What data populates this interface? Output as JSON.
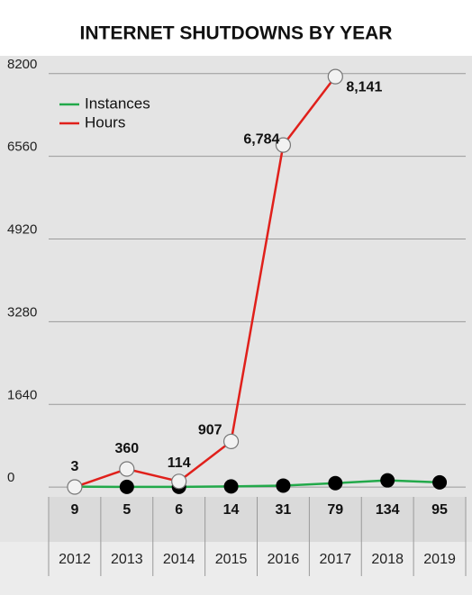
{
  "chart_data": {
    "type": "line",
    "title": "INTERNET SHUTDOWNS BY YEAR",
    "categories": [
      "2012",
      "2013",
      "2014",
      "2015",
      "2016",
      "2017",
      "2018",
      "2019"
    ],
    "series": [
      {
        "name": "Instances",
        "color": "#22a94a",
        "values": [
          9,
          5,
          6,
          14,
          31,
          79,
          134,
          95
        ]
      },
      {
        "name": "Hours",
        "color": "#e0201b",
        "values": [
          3,
          360,
          114,
          907,
          6784,
          8141,
          null,
          null
        ],
        "value_labels": [
          "3",
          "360",
          "114",
          "907",
          "6,784",
          "8,141",
          null,
          null
        ]
      }
    ],
    "ylim": [
      -1050,
      8500
    ],
    "yticks": [
      0,
      1640,
      3280,
      4920,
      6560,
      8200
    ],
    "grid": true,
    "legend": "upper left"
  }
}
